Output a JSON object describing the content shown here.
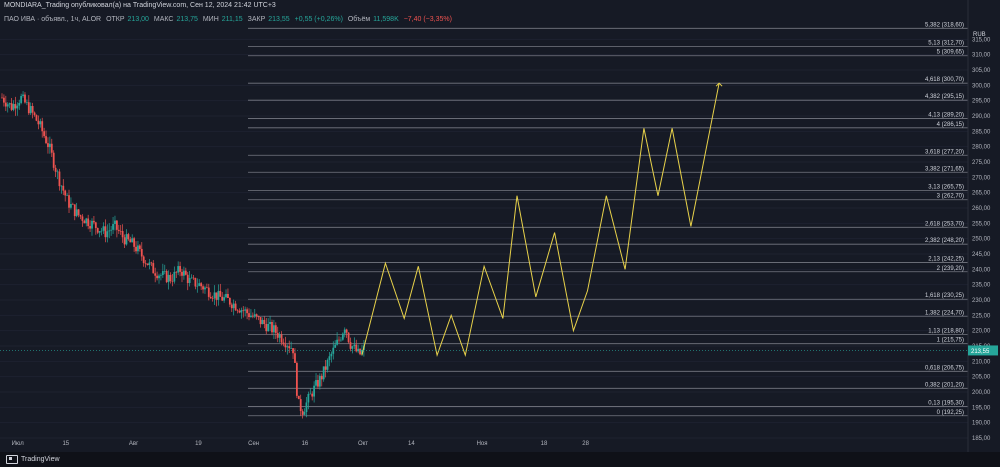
{
  "header": {
    "title": "MONDIARA_Trading опубликовал(а) на TradingView.com, Сен 12, 2024 21:42 UTC+3"
  },
  "legend": {
    "symbol": "ПАО ИВА · объявл., 1ч, ALOR",
    "open_label": "ОТКР",
    "open": "213,00",
    "high_label": "МАКС",
    "high": "213,75",
    "low_label": "МИН",
    "low": "211,15",
    "close_label": "ЗАКР",
    "close": "213,55",
    "change": "+0,55 (+0,26%)",
    "volume_label": "Объём",
    "volume": "11,598K",
    "volume_change": "−7,40 (−3,35%)"
  },
  "footer": {
    "brand": "TradingView"
  },
  "colors": {
    "background": "#161a25",
    "up": "#26a69a",
    "down": "#ef5350",
    "projection": "#e8d24a",
    "fib_line": "#9598a1",
    "price_tag": "#26a69a"
  },
  "chart_data": {
    "type": "candlestick",
    "currency": "RUB",
    "y_axis": {
      "ylim": [
        185,
        320
      ],
      "ticks": [
        "315,00",
        "310,00",
        "305,00",
        "300,00",
        "295,00",
        "290,00",
        "285,00",
        "280,00",
        "275,00",
        "270,00",
        "265,00",
        "260,00",
        "255,00",
        "250,00",
        "245,00",
        "240,00",
        "235,00",
        "230,00",
        "225,00",
        "220,00",
        "215,00",
        "210,00",
        "205,00",
        "200,00",
        "195,00",
        "190,00",
        "185,00"
      ]
    },
    "x_axis": {
      "labels": [
        "Июл",
        "15",
        "Авг",
        "19",
        "Сен",
        "16",
        "Окт",
        "14",
        "Ноя",
        "18",
        "28"
      ]
    },
    "last_price": "213,55",
    "fib_levels": [
      {
        "level": "5,382",
        "price": 318.6,
        "label": "5,382 (318,60)"
      },
      {
        "level": "5,13",
        "price": 312.7,
        "label": "5,13 (312,70)"
      },
      {
        "level": "5",
        "price": 309.65,
        "label": "5 (309,65)"
      },
      {
        "level": "4,618",
        "price": 300.7,
        "label": "4,618 (300,70)"
      },
      {
        "level": "4,382",
        "price": 295.15,
        "label": "4,382 (295,15)"
      },
      {
        "level": "4,13",
        "price": 289.2,
        "label": "4,13 (289,20)"
      },
      {
        "level": "4",
        "price": 286.15,
        "label": "4 (286,15)"
      },
      {
        "level": "3,618",
        "price": 277.2,
        "label": "3,618 (277,20)"
      },
      {
        "level": "3,382",
        "price": 271.65,
        "label": "3,382 (271,65)"
      },
      {
        "level": "3,13",
        "price": 265.75,
        "label": "3,13 (265,75)"
      },
      {
        "level": "3",
        "price": 262.7,
        "label": "3 (262,70)"
      },
      {
        "level": "2,618",
        "price": 253.7,
        "label": "2,618 (253,70)"
      },
      {
        "level": "2,382",
        "price": 248.2,
        "label": "2,382 (248,20)"
      },
      {
        "level": "2,13",
        "price": 242.25,
        "label": "2,13 (242,25)"
      },
      {
        "level": "2",
        "price": 239.2,
        "label": "2 (239,20)"
      },
      {
        "level": "1,618",
        "price": 230.25,
        "label": "1,618 (230,25)"
      },
      {
        "level": "1,382",
        "price": 224.7,
        "label": "1,382 (224,70)"
      },
      {
        "level": "1,13",
        "price": 218.8,
        "label": "1,13 (218,80)"
      },
      {
        "level": "1",
        "price": 215.75,
        "label": "1 (215,75)"
      },
      {
        "level": "0,618",
        "price": 206.75,
        "label": "0,618 (206,75)"
      },
      {
        "level": "0,382",
        "price": 201.2,
        "label": "0,382 (201,20)"
      },
      {
        "level": "0,13",
        "price": 195.3,
        "label": "0,13 (195,30)"
      },
      {
        "level": "0",
        "price": 192.25,
        "label": "0 (192,25)"
      }
    ],
    "price_path": [
      [
        0,
        296
      ],
      [
        0.01,
        293
      ],
      [
        0.02,
        296
      ],
      [
        0.03,
        292
      ],
      [
        0.04,
        287
      ],
      [
        0.05,
        280
      ],
      [
        0.06,
        270
      ],
      [
        0.07,
        262
      ],
      [
        0.08,
        258
      ],
      [
        0.09,
        256
      ],
      [
        0.1,
        254
      ],
      [
        0.11,
        252
      ],
      [
        0.12,
        254
      ],
      [
        0.13,
        250
      ],
      [
        0.14,
        248
      ],
      [
        0.15,
        244
      ],
      [
        0.16,
        240
      ],
      [
        0.17,
        238
      ],
      [
        0.18,
        237
      ],
      [
        0.19,
        240
      ],
      [
        0.2,
        236
      ],
      [
        0.21,
        235
      ],
      [
        0.22,
        233
      ],
      [
        0.23,
        231
      ],
      [
        0.24,
        230
      ],
      [
        0.25,
        228
      ],
      [
        0.26,
        226
      ],
      [
        0.27,
        224
      ],
      [
        0.28,
        222
      ],
      [
        0.29,
        220
      ],
      [
        0.3,
        217
      ],
      [
        0.31,
        214
      ],
      [
        0.315,
        196
      ],
      [
        0.32,
        194
      ],
      [
        0.33,
        200
      ],
      [
        0.34,
        205
      ],
      [
        0.35,
        212
      ],
      [
        0.36,
        218
      ],
      [
        0.365,
        222
      ],
      [
        0.37,
        216
      ],
      [
        0.38,
        212
      ],
      [
        0.385,
        214
      ]
    ],
    "projection_path": [
      [
        0.385,
        212
      ],
      [
        0.41,
        242
      ],
      [
        0.43,
        224
      ],
      [
        0.445,
        241
      ],
      [
        0.465,
        212
      ],
      [
        0.48,
        225
      ],
      [
        0.495,
        212
      ],
      [
        0.515,
        241
      ],
      [
        0.535,
        224
      ],
      [
        0.55,
        264
      ],
      [
        0.57,
        231
      ],
      [
        0.59,
        252
      ],
      [
        0.61,
        220
      ],
      [
        0.625,
        233
      ],
      [
        0.645,
        264
      ],
      [
        0.665,
        240
      ],
      [
        0.685,
        286
      ],
      [
        0.7,
        264
      ],
      [
        0.715,
        286
      ],
      [
        0.735,
        254
      ],
      [
        0.765,
        300.7
      ]
    ]
  }
}
